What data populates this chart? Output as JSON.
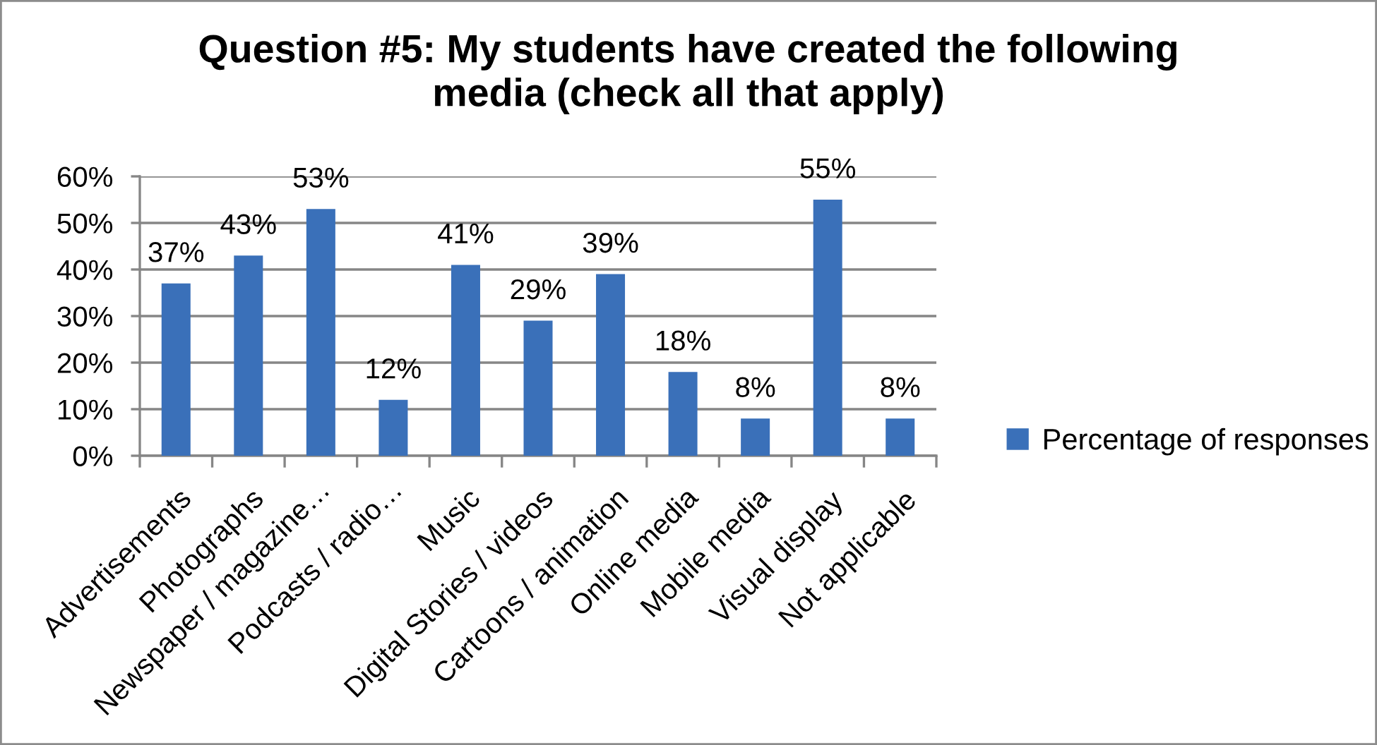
{
  "chart_data": {
    "type": "bar",
    "title": "Question #5: My students have created the following\nmedia (check all that apply)",
    "categories": [
      "Advertisements",
      "Photographs",
      "Newspaper / magazine…",
      "Podcasts / radio…",
      "Music",
      "Digital Stories / videos",
      "Cartoons / animation",
      "Online media",
      "Mobile media",
      "Visual display",
      "Not applicable"
    ],
    "series": [
      {
        "name": "Percentage of responses",
        "color": "#3a70b9",
        "values": [
          37,
          43,
          53,
          12,
          41,
          29,
          39,
          18,
          8,
          55,
          8
        ],
        "value_labels": [
          "37%",
          "43%",
          "53%",
          "12%",
          "41%",
          "29%",
          "39%",
          "18%",
          "8%",
          "55%",
          "8%"
        ]
      }
    ],
    "ylim": [
      0,
      60
    ],
    "yticks": [
      {
        "value": 0,
        "label": "0%"
      },
      {
        "value": 10,
        "label": "10%"
      },
      {
        "value": 20,
        "label": "20%"
      },
      {
        "value": 30,
        "label": "30%"
      },
      {
        "value": 40,
        "label": "40%"
      },
      {
        "value": 50,
        "label": "50%"
      },
      {
        "value": 60,
        "label": "60%"
      }
    ],
    "grid": "y",
    "legend": "right"
  }
}
